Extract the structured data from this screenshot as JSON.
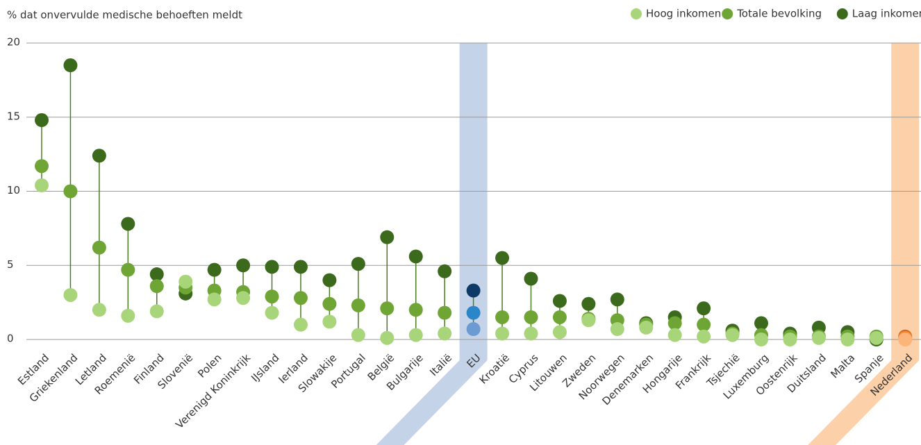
{
  "chart_data": {
    "type": "dotplot",
    "title": "% dat onvervulde medische behoeften meldt",
    "categories": [
      "Estland",
      "Griekenland",
      "Letland",
      "Roemenië",
      "Finland",
      "Slovenië",
      "Polen",
      "Verenigd Koninkrijk",
      "IJsland",
      "Ierland",
      "Slowakije",
      "Portugal",
      "België",
      "Bulgarije",
      "Italië",
      "EU",
      "Kroatië",
      "Cyprus",
      "Litouwen",
      "Zweden",
      "Noorwegen",
      "Denemarken",
      "Hongarije",
      "Frankrijk",
      "Tsjechië",
      "Luxemburg",
      "Oostenrijk",
      "Duitsland",
      "Malta",
      "Spanje",
      "Nederland"
    ],
    "series": [
      {
        "name": "Hoog inkomen",
        "color": "#a9d57a",
        "values": [
          10.4,
          3.0,
          2.0,
          1.6,
          1.9,
          3.9,
          2.7,
          2.8,
          1.8,
          1.0,
          1.2,
          0.3,
          0.1,
          0.3,
          0.4,
          0.7,
          0.4,
          0.4,
          0.5,
          1.3,
          0.7,
          0.8,
          0.3,
          0.2,
          0.3,
          0.0,
          0.0,
          0.1,
          0.0,
          0.1,
          0.0
        ]
      },
      {
        "name": "Totale bevolking",
        "color": "#6ea535",
        "values": [
          11.7,
          10.0,
          6.2,
          4.7,
          3.6,
          3.5,
          3.3,
          3.2,
          2.9,
          2.8,
          2.4,
          2.3,
          2.1,
          2.0,
          1.8,
          1.8,
          1.5,
          1.5,
          1.5,
          1.4,
          1.3,
          1.0,
          1.1,
          1.0,
          0.4,
          0.3,
          0.2,
          0.2,
          0.2,
          0.2,
          0.1
        ]
      },
      {
        "name": "Laag inkomen",
        "color": "#3c6a1c",
        "values": [
          14.8,
          18.5,
          12.4,
          7.8,
          4.4,
          3.1,
          4.7,
          5.0,
          4.9,
          4.9,
          4.0,
          5.1,
          6.9,
          5.6,
          4.6,
          3.3,
          5.5,
          4.1,
          2.6,
          2.4,
          2.7,
          1.1,
          1.5,
          2.1,
          0.6,
          1.1,
          0.4,
          0.8,
          0.5,
          0.0,
          0.2
        ]
      }
    ],
    "line_color": "#4a7a22",
    "highlights": [
      {
        "category": "EU",
        "band_color": "#c5d3e8",
        "colors": [
          "#6b9bd2",
          "#2a86c9",
          "#0d3a66"
        ]
      },
      {
        "category": "Nederland",
        "band_color": "#fcd0a8",
        "colors": [
          "#fbb479",
          "#f5893a",
          "#d66a1c"
        ]
      }
    ],
    "ylim": [
      0,
      20
    ],
    "yticks": [
      0,
      5,
      10,
      15,
      20
    ],
    "grid": true,
    "legend": "top-right"
  }
}
